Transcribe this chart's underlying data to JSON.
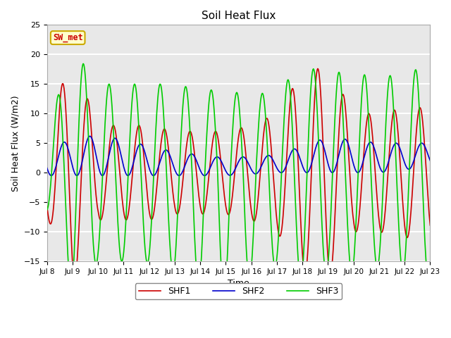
{
  "title": "Soil Heat Flux",
  "xlabel": "Time",
  "ylabel": "Soil Heat Flux (W/m2)",
  "ylim": [
    -15,
    25
  ],
  "yticks": [
    -15,
    -10,
    -5,
    0,
    5,
    10,
    15,
    20,
    25
  ],
  "xtick_labels": [
    "Jul 8",
    "Jul 9",
    "Jul 10",
    "Jul 11",
    "Jul 12",
    "Jul 13",
    "Jul 14",
    "Jul 15",
    "Jul 16",
    "Jul 17",
    "Jul 18",
    "Jul 19",
    "Jul 20",
    "Jul 21",
    "Jul 22",
    "Jul 23"
  ],
  "colors": {
    "SHF1": "#cc0000",
    "SHF2": "#0000cc",
    "SHF3": "#00cc00"
  },
  "annotation_text": "SW_met",
  "annotation_color": "#cc0000",
  "annotation_bg": "#ffffcc",
  "annotation_border": "#ccaa00",
  "plot_bg": "#e8e8e8",
  "fig_bg": "#ffffff",
  "grid_color": "#ffffff",
  "line_width": 1.2,
  "figsize": [
    6.4,
    4.8
  ],
  "dpi": 100
}
